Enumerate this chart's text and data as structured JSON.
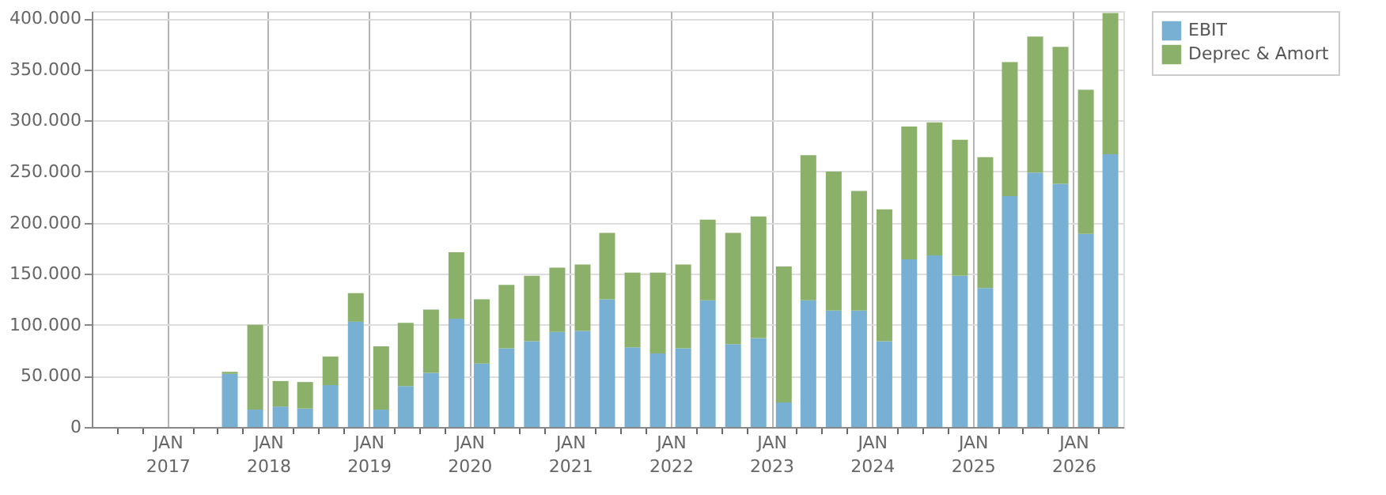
{
  "chart_data": {
    "type": "bar",
    "stacked": true,
    "legend": "top right",
    "grid": true,
    "x": [
      "2017-08-15",
      "2017-11-15",
      "2018-02-15",
      "2018-05-15",
      "2018-08-15",
      "2018-11-15",
      "2019-02-15",
      "2019-05-15",
      "2019-08-15",
      "2019-11-15",
      "2020-02-15",
      "2020-05-15",
      "2020-08-15",
      "2020-11-15",
      "2021-02-15",
      "2021-05-15",
      "2021-08-15",
      "2021-11-15",
      "2022-02-15",
      "2022-05-15",
      "2022-08-15",
      "2022-11-15",
      "2023-02-15",
      "2023-05-15",
      "2023-08-15",
      "2023-11-15",
      "2024-02-15",
      "2024-05-15",
      "2024-08-15",
      "2024-11-15",
      "2025-02-15",
      "2025-05-15",
      "2025-08-15",
      "2025-11-15",
      "2026-02-15",
      "2026-05-15"
    ],
    "series": [
      {
        "name": "EBIT",
        "color": "#78b0d3",
        "values": [
          52000,
          17000,
          20000,
          18000,
          41000,
          103000,
          17000,
          40000,
          53000,
          106000,
          62000,
          77000,
          84000,
          93000,
          94000,
          125000,
          78000,
          72000,
          77000,
          124000,
          81000,
          87000,
          24000,
          124000,
          114000,
          114000,
          84000,
          164000,
          168000,
          148000,
          136000,
          226000,
          249000,
          238000,
          189000,
          267000
        ]
      },
      {
        "name": "Deprec & Amort",
        "color": "#8ab06a",
        "values": [
          2000,
          83000,
          25000,
          26000,
          28000,
          28000,
          62000,
          62000,
          62000,
          65000,
          63000,
          62000,
          64000,
          63000,
          65000,
          65000,
          73000,
          79000,
          82000,
          79000,
          109000,
          119000,
          133000,
          142000,
          136000,
          117000,
          129000,
          130000,
          130000,
          133000,
          128000,
          131000,
          133000,
          134000,
          141000,
          138000
        ]
      }
    ],
    "xlim": [
      "2016-04-01",
      "2026-07-01"
    ],
    "xticks": [
      {
        "value": "2016-07-01",
        "label": null
      },
      {
        "value": "2016-10-01",
        "label": null
      },
      {
        "value": "2017-01-01",
        "label": "JAN\n2017"
      },
      {
        "value": "2017-04-01",
        "label": null
      },
      {
        "value": "2017-07-01",
        "label": null
      },
      {
        "value": "2017-10-01",
        "label": null
      },
      {
        "value": "2018-01-01",
        "label": "JAN\n2018"
      },
      {
        "value": "2018-04-01",
        "label": null
      },
      {
        "value": "2018-07-01",
        "label": null
      },
      {
        "value": "2018-10-01",
        "label": null
      },
      {
        "value": "2019-01-01",
        "label": "JAN\n2019"
      },
      {
        "value": "2019-04-01",
        "label": null
      },
      {
        "value": "2019-07-01",
        "label": null
      },
      {
        "value": "2019-10-01",
        "label": null
      },
      {
        "value": "2020-01-01",
        "label": "JAN\n2020"
      },
      {
        "value": "2020-04-01",
        "label": null
      },
      {
        "value": "2020-07-01",
        "label": null
      },
      {
        "value": "2020-10-01",
        "label": null
      },
      {
        "value": "2021-01-01",
        "label": "JAN\n2021"
      },
      {
        "value": "2021-04-01",
        "label": null
      },
      {
        "value": "2021-07-01",
        "label": null
      },
      {
        "value": "2021-10-01",
        "label": null
      },
      {
        "value": "2022-01-01",
        "label": "JAN\n2022"
      },
      {
        "value": "2022-04-01",
        "label": null
      },
      {
        "value": "2022-07-01",
        "label": null
      },
      {
        "value": "2022-10-01",
        "label": null
      },
      {
        "value": "2023-01-01",
        "label": "JAN\n2023"
      },
      {
        "value": "2023-04-01",
        "label": null
      },
      {
        "value": "2023-07-01",
        "label": null
      },
      {
        "value": "2023-10-01",
        "label": null
      },
      {
        "value": "2024-01-01",
        "label": "JAN\n2024"
      },
      {
        "value": "2024-04-01",
        "label": null
      },
      {
        "value": "2024-07-01",
        "label": null
      },
      {
        "value": "2024-10-01",
        "label": null
      },
      {
        "value": "2025-01-01",
        "label": "JAN\n2025"
      },
      {
        "value": "2025-04-01",
        "label": null
      },
      {
        "value": "2025-07-01",
        "label": null
      },
      {
        "value": "2025-10-01",
        "label": null
      },
      {
        "value": "2026-01-01",
        "label": "JAN\n2026"
      },
      {
        "value": "2026-04-01",
        "label": null
      }
    ],
    "ylim": [
      0,
      407000
    ],
    "yticks": [
      {
        "value": 0,
        "label": "0"
      },
      {
        "value": 50000,
        "label": "50.000"
      },
      {
        "value": 100000,
        "label": "100.000"
      },
      {
        "value": 150000,
        "label": "150.000"
      },
      {
        "value": 200000,
        "label": "200.000"
      },
      {
        "value": 250000,
        "label": "250.000"
      },
      {
        "value": 300000,
        "label": "300.000"
      },
      {
        "value": 350000,
        "label": "350.000"
      },
      {
        "value": 400000,
        "label": "400.000"
      }
    ]
  }
}
